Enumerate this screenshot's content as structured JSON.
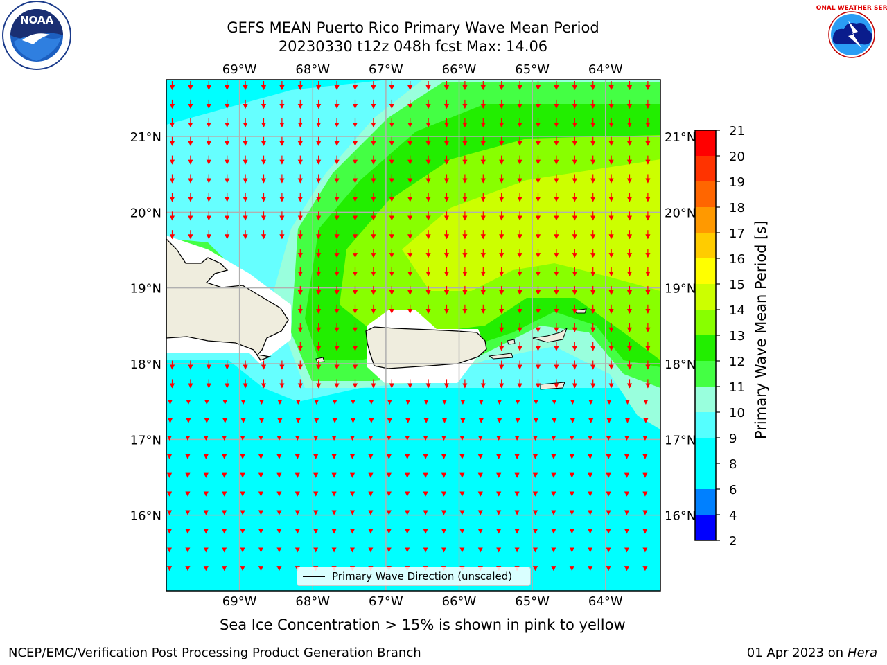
{
  "title": {
    "line1": "GEFS MEAN Puerto Rico Primary Wave Mean Period",
    "line2": "20230330 t12z 048h fcst   Max: 14.06"
  },
  "logos": {
    "left": {
      "icon": "noaa-logo",
      "text": "NOAA"
    },
    "right": {
      "icon": "nws-logo",
      "text": "NATIONAL WEATHER SERVICE"
    }
  },
  "map": {
    "lon_ticks": [
      "69°W",
      "68°W",
      "67°W",
      "66°W",
      "65°W",
      "64°W"
    ],
    "lat_ticks": [
      "21°N",
      "20°N",
      "19°N",
      "18°N",
      "17°N",
      "16°N"
    ],
    "extent": {
      "lon_min": -70.0,
      "lon_max": -63.25,
      "lat_min": 15.0,
      "lat_max": 21.75
    },
    "colors": {
      "land": "#efedde",
      "ocean_low": "#00ffff",
      "ocean_mid": "#66ffff",
      "ocean_10": "#99ffdd",
      "ocean_11": "#44ff44",
      "ocean_12": "#22ee00",
      "ocean_13": "#88ff00",
      "ocean_14": "#ccff00",
      "arrow": "#ff0000",
      "grid": "#b0b0b0"
    }
  },
  "legend": {
    "label": "Primary Wave Direction (unscaled)"
  },
  "colorbar": {
    "label": "Primary Wave Mean Period [s]",
    "ticks": [
      "2",
      "4",
      "6",
      "8",
      "9",
      "10",
      "11",
      "12",
      "13",
      "14",
      "15",
      "16",
      "17",
      "18",
      "19",
      "20",
      "21"
    ],
    "colors": [
      "#0000ff",
      "#0080ff",
      "#00ffff",
      "#55ffff",
      "#99ffdd",
      "#44ff44",
      "#22ee00",
      "#88ff00",
      "#ccff00",
      "#ffff00",
      "#ffcc00",
      "#ff9900",
      "#ff6600",
      "#ff3300",
      "#ff0000"
    ]
  },
  "subtitle": "Sea Ice Concentration > 15% is shown in pink to yellow",
  "footer": {
    "left": "NCEP/EMC/Verification Post Processing Product Generation Branch",
    "right_date": "01 Apr 2023 on",
    "right_host": "Hera"
  }
}
